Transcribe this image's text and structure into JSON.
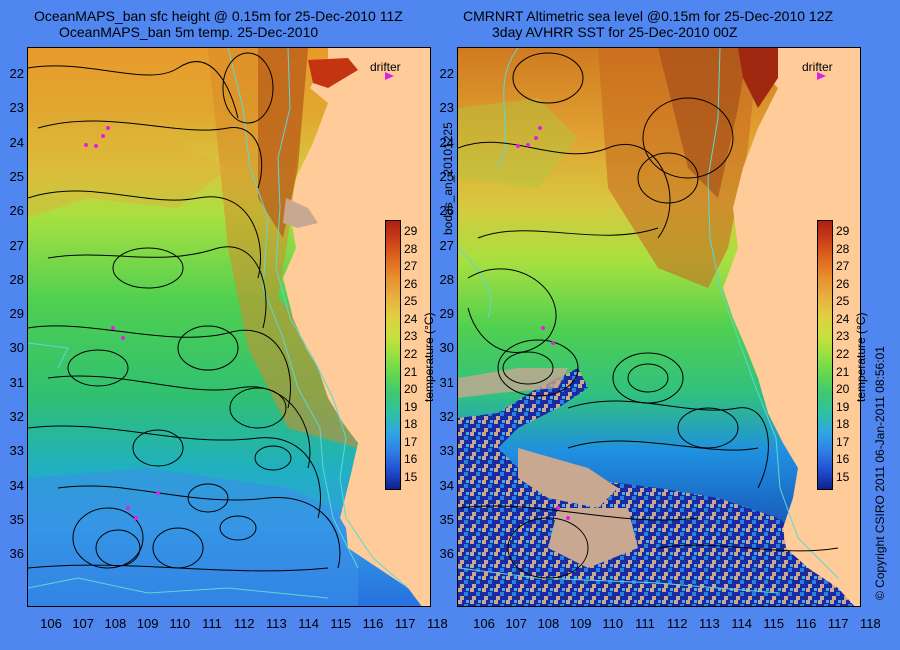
{
  "left": {
    "title_line1": "OceanMAPS_ban sfc height @ 0.15m for 25-Dec-2010 11Z",
    "title_line2": "OceanMAPS_ban 5m temp. 25-Dec-2010"
  },
  "right": {
    "title_line1": "CMRNRT Altimetric sea level  @0.15m  for 25-Dec-2010 12Z",
    "title_line2": "3day AVHRR SST for 25-Dec-2010 00Z"
  },
  "legend": {
    "drifter_label": "drifter",
    "drifter_color": "#e020e0"
  },
  "colorbar": {
    "title": "temperature (°C)",
    "ticks": [
      "29",
      "28",
      "27",
      "26",
      "25",
      "24",
      "23",
      "22",
      "21",
      "20",
      "19",
      "18",
      "17",
      "16",
      "15"
    ],
    "range": [
      14.3,
      29.7
    ]
  },
  "axes": {
    "lat_labels": [
      "22",
      "23",
      "24",
      "25",
      "26",
      "27",
      "28",
      "29",
      "30",
      "31",
      "32",
      "33",
      "34",
      "35",
      "36"
    ],
    "lon_labels": [
      "106",
      "107",
      "108",
      "109",
      "110",
      "111",
      "112",
      "113",
      "114",
      "115",
      "116",
      "117",
      "118"
    ]
  },
  "side_text_left": "bodas_an_20101225",
  "side_text_right": "© Copyright CSIRO 2011   06-Jan-2011 08:56:01",
  "colors": {
    "background": "#4f86f0",
    "land": "#ffcc99",
    "cloud": "#c8a890",
    "contour": "#000000",
    "isobath": "#5fd6d6"
  }
}
